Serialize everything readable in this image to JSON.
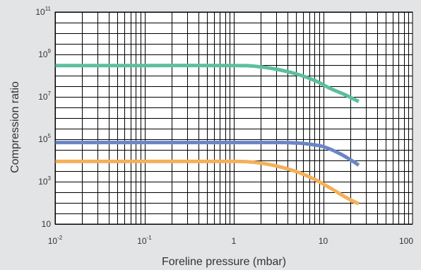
{
  "chart_data": {
    "type": "line",
    "title": "",
    "xlabel": "Foreline pressure (mbar)",
    "ylabel": "Compression ratio",
    "x_scale": "log",
    "y_scale": "log",
    "xlim": [
      0.01,
      100
    ],
    "ylim": [
      10,
      100000000000
    ],
    "grid": true,
    "background": "#ffffff",
    "page_background": "#e3e4e5",
    "grid_color": "#000000",
    "x_tick_labels": [
      {
        "value": 0.01,
        "base": "10",
        "exp": "-2"
      },
      {
        "value": 0.1,
        "base": "10",
        "exp": "-1"
      },
      {
        "value": 1,
        "base": "1",
        "exp": ""
      },
      {
        "value": 10,
        "base": "10",
        "exp": ""
      },
      {
        "value": 100,
        "base": "100",
        "exp": ""
      }
    ],
    "y_tick_labels": [
      {
        "value": 10,
        "base": "10",
        "exp": ""
      },
      {
        "value": 1000,
        "base": "10",
        "exp": "3"
      },
      {
        "value": 100000,
        "base": "10",
        "exp": "5"
      },
      {
        "value": 10000000,
        "base": "10",
        "exp": "7"
      },
      {
        "value": 1000000000,
        "base": "10",
        "exp": "9"
      },
      {
        "value": 100000000000,
        "base": "10",
        "exp": "11"
      }
    ],
    "series": [
      {
        "color": "#5bbf9f",
        "x": [
          0.01,
          0.1,
          1,
          1.5,
          2,
          3,
          5,
          8,
          12,
          18,
          25
        ],
        "y": [
          300000000,
          300000000,
          300000000,
          290000000,
          260000000,
          200000000,
          120000000,
          60000000,
          25000000,
          12000000,
          6000000
        ]
      },
      {
        "color": "#6b86c6",
        "x": [
          0.01,
          0.1,
          1,
          2,
          3,
          4,
          6,
          10,
          15,
          20,
          25
        ],
        "y": [
          70000,
          70000,
          70000,
          70000,
          70000,
          69000,
          63000,
          45000,
          22000,
          11000,
          6000
        ]
      },
      {
        "color": "#f4b05a",
        "x": [
          0.01,
          0.1,
          1,
          1.5,
          2,
          3,
          5,
          8,
          12,
          18,
          25
        ],
        "y": [
          9000,
          9000,
          9000,
          8500,
          7500,
          5500,
          3000,
          1300,
          500,
          180,
          90
        ]
      }
    ]
  }
}
